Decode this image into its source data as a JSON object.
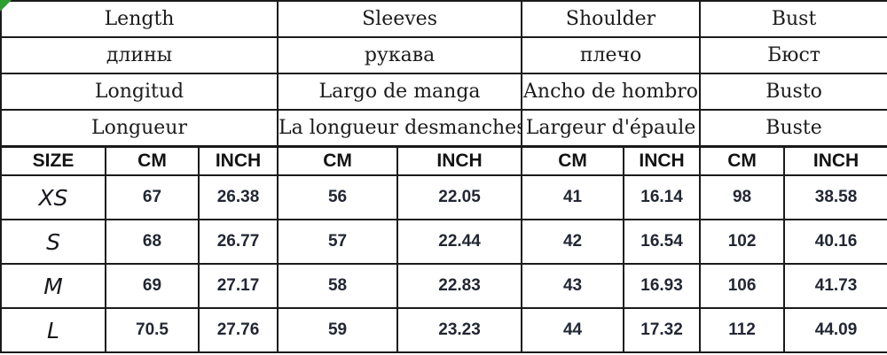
{
  "colors": {
    "background": "#ffffff",
    "grid_border": "#1a1a1a",
    "header_text": "#1b1b1b",
    "value_text": "#222733",
    "corner_marker_green": "#2f9e31"
  },
  "chart_data": {
    "type": "table",
    "measurement_header_rows": [
      [
        "Length",
        "Sleeves",
        "Shoulder",
        "Bust"
      ],
      [
        "длины",
        "рукава",
        "плечо",
        "Бюст"
      ],
      [
        "Longitud",
        "Largo de manga",
        "Ancho de hombro",
        "Busto"
      ],
      [
        "Longueur",
        "La longueur desmanches",
        "Largeur d'épaule",
        "Buste"
      ]
    ],
    "unit_row": [
      "SIZE",
      "CM",
      "INCH",
      "CM",
      "INCH",
      "CM",
      "INCH",
      "CM",
      "INCH"
    ],
    "rows": [
      {
        "size": "XS",
        "values": [
          "67",
          "26.38",
          "56",
          "22.05",
          "41",
          "16.14",
          "98",
          "38.58"
        ]
      },
      {
        "size": "S",
        "values": [
          "68",
          "26.77",
          "57",
          "22.44",
          "42",
          "16.54",
          "102",
          "40.16"
        ]
      },
      {
        "size": "M",
        "values": [
          "69",
          "27.17",
          "58",
          "22.83",
          "43",
          "16.93",
          "106",
          "41.73"
        ]
      },
      {
        "size": "L",
        "values": [
          "70.5",
          "27.76",
          "59",
          "23.23",
          "44",
          "17.32",
          "112",
          "44.09"
        ]
      }
    ]
  }
}
